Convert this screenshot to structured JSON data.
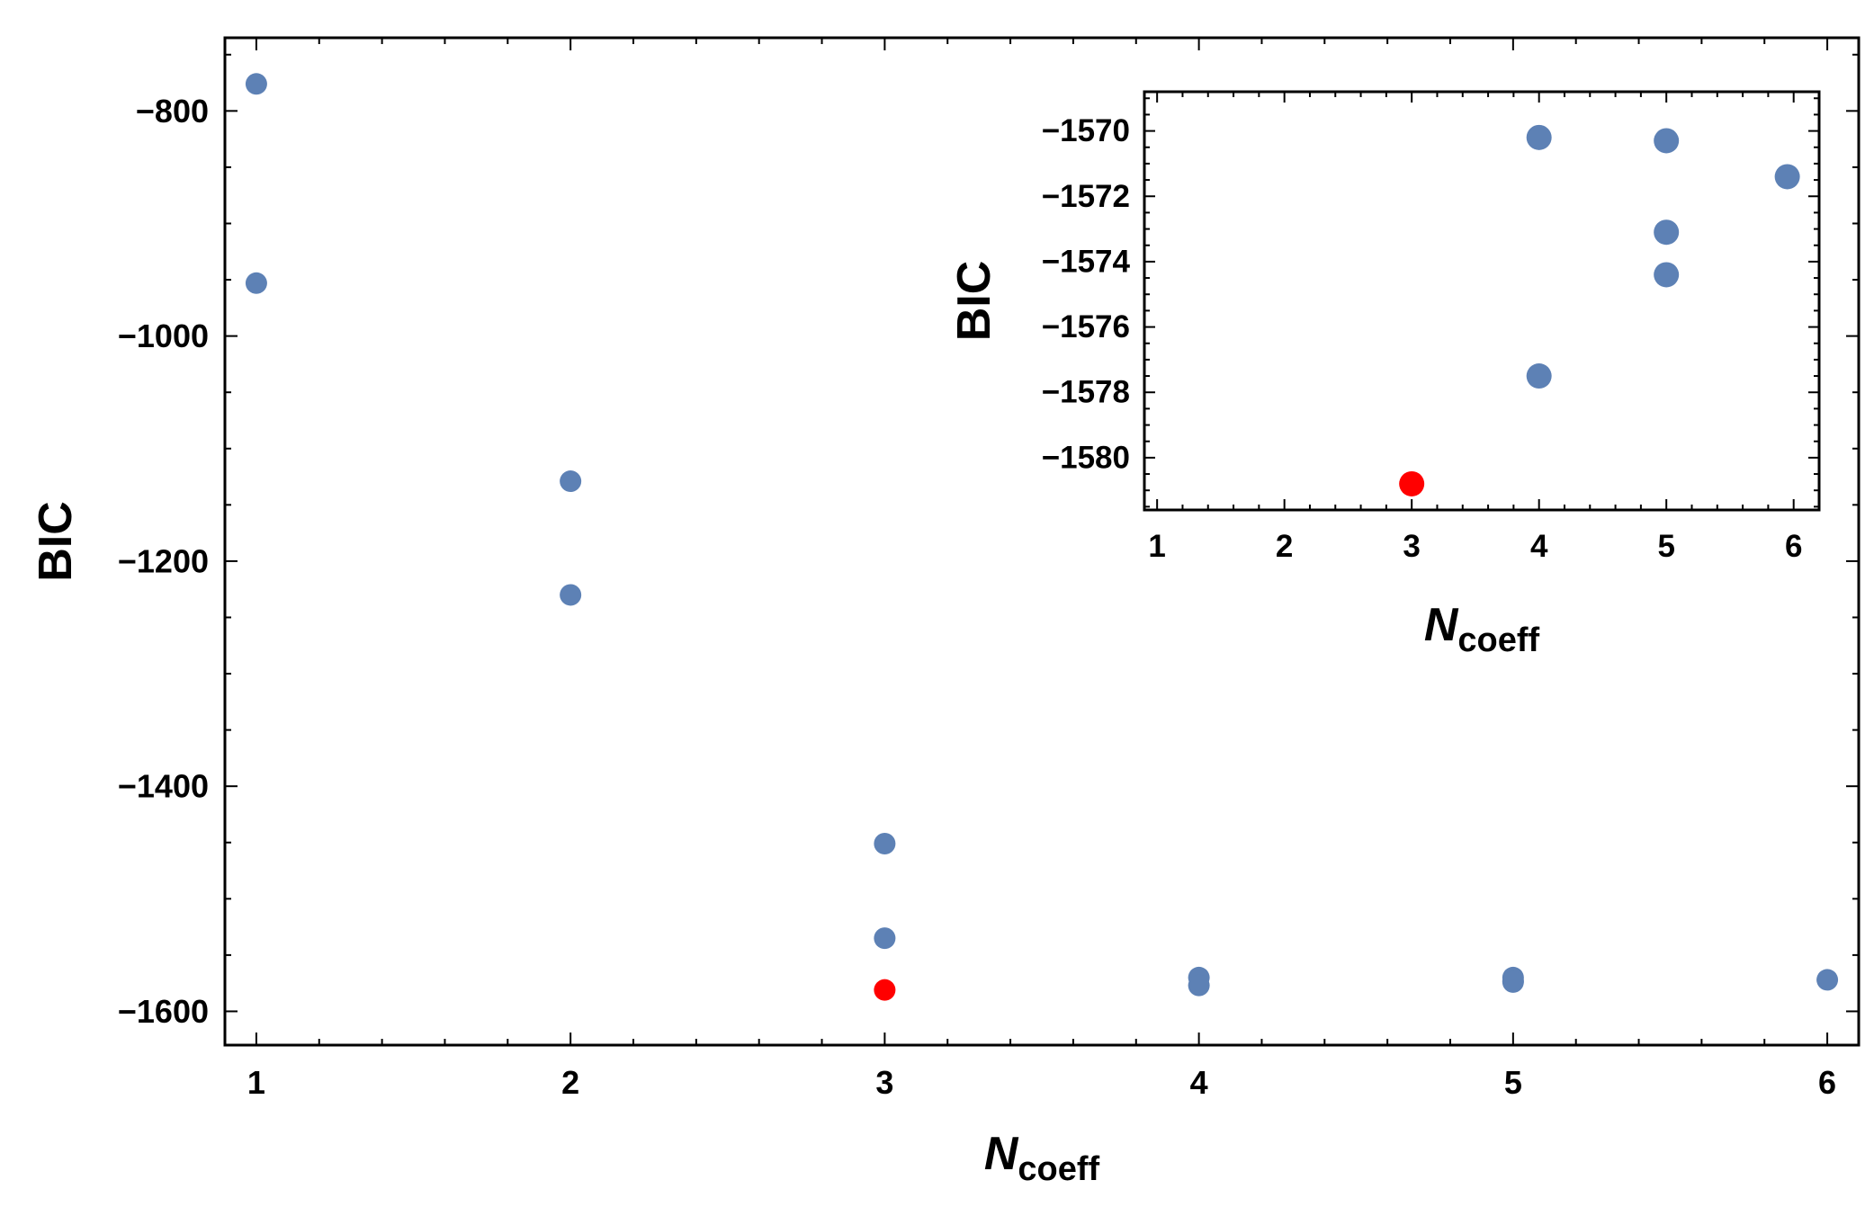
{
  "chart_data": [
    {
      "type": "scatter",
      "title": "",
      "xlabel": "N",
      "xlabel_sub": "coeff",
      "ylabel": "BIC",
      "xlim": [
        0.9,
        6.1
      ],
      "ylim": [
        -1630,
        -735
      ],
      "xticks": [
        1,
        2,
        3,
        4,
        5,
        6
      ],
      "xtick_labels": [
        "1",
        "2",
        "3",
        "4",
        "5",
        "6"
      ],
      "yticks": [
        -800,
        -1000,
        -1200,
        -1400,
        -1600
      ],
      "ytick_labels": [
        "−800",
        "−1000",
        "−1200",
        "−1400",
        "−1600"
      ],
      "grid": false,
      "legend": "none",
      "colors": {
        "default": "#5d81b5",
        "highlight": "#ff0000"
      },
      "points": [
        {
          "x": 1,
          "y": -776,
          "highlight": false
        },
        {
          "x": 1,
          "y": -953,
          "highlight": false
        },
        {
          "x": 2,
          "y": -1129,
          "highlight": false
        },
        {
          "x": 2,
          "y": -1230,
          "highlight": false
        },
        {
          "x": 3,
          "y": -1451,
          "highlight": false
        },
        {
          "x": 3,
          "y": -1535,
          "highlight": false
        },
        {
          "x": 3,
          "y": -1581,
          "highlight": true
        },
        {
          "x": 4,
          "y": -1570,
          "highlight": false
        },
        {
          "x": 4,
          "y": -1577,
          "highlight": false
        },
        {
          "x": 5,
          "y": -1570,
          "highlight": false
        },
        {
          "x": 5,
          "y": -1573,
          "highlight": false
        },
        {
          "x": 5,
          "y": -1574,
          "highlight": false
        },
        {
          "x": 6,
          "y": -1572,
          "highlight": false
        }
      ]
    },
    {
      "type": "scatter",
      "title": "",
      "xlabel": "N",
      "xlabel_sub": "coeff",
      "ylabel": "BIC",
      "xlim": [
        0.9,
        6.2
      ],
      "ylim": [
        -1581.6,
        -1568.8
      ],
      "xticks": [
        1,
        2,
        3,
        4,
        5,
        6
      ],
      "xtick_labels": [
        "1",
        "2",
        "3",
        "4",
        "5",
        "6"
      ],
      "yticks": [
        -1570,
        -1572,
        -1574,
        -1576,
        -1578,
        -1580
      ],
      "ytick_labels": [
        "−1570",
        "−1572",
        "−1574",
        "−1576",
        "−1578",
        "−1580"
      ],
      "grid": false,
      "legend": "none",
      "colors": {
        "default": "#5d81b5",
        "highlight": "#ff0000"
      },
      "points": [
        {
          "x": 4,
          "y": -1570.2,
          "highlight": false
        },
        {
          "x": 5,
          "y": -1570.3,
          "highlight": false
        },
        {
          "x": 5.95,
          "y": -1571.4,
          "highlight": false
        },
        {
          "x": 5,
          "y": -1573.1,
          "highlight": false
        },
        {
          "x": 5,
          "y": -1574.4,
          "highlight": false
        },
        {
          "x": 4,
          "y": -1577.5,
          "highlight": false
        },
        {
          "x": 3,
          "y": -1580.8,
          "highlight": true
        }
      ]
    }
  ]
}
